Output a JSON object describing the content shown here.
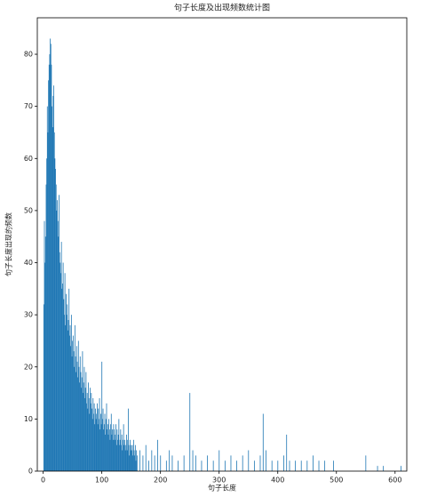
{
  "chart_data": {
    "type": "bar",
    "title": "句子长度及出现频数统计图",
    "x_label": "句子长度",
    "y_label": "句子长度出现的频数",
    "color": "#1f77b4",
    "x": [
      1,
      2,
      3,
      4,
      5,
      6,
      7,
      8,
      9,
      10,
      11,
      12,
      13,
      14,
      15,
      16,
      17,
      18,
      19,
      20,
      21,
      22,
      23,
      24,
      25,
      26,
      27,
      28,
      29,
      30,
      31,
      32,
      33,
      34,
      35,
      36,
      37,
      38,
      39,
      40,
      41,
      42,
      43,
      44,
      45,
      46,
      47,
      48,
      49,
      50,
      51,
      52,
      53,
      54,
      55,
      56,
      57,
      58,
      59,
      60,
      61,
      62,
      63,
      64,
      65,
      66,
      67,
      68,
      69,
      70,
      71,
      72,
      73,
      74,
      75,
      76,
      77,
      78,
      79,
      80,
      81,
      82,
      83,
      84,
      85,
      86,
      87,
      88,
      89,
      90,
      91,
      92,
      93,
      94,
      95,
      96,
      97,
      98,
      99,
      100,
      101,
      102,
      103,
      104,
      105,
      106,
      107,
      108,
      109,
      110,
      111,
      112,
      113,
      114,
      115,
      116,
      117,
      118,
      119,
      120,
      121,
      122,
      123,
      124,
      125,
      126,
      127,
      128,
      129,
      130,
      131,
      132,
      133,
      134,
      135,
      136,
      137,
      138,
      139,
      140,
      141,
      142,
      143,
      144,
      145,
      146,
      147,
      148,
      149,
      150,
      151,
      152,
      153,
      154,
      155,
      156,
      157,
      158,
      159,
      160,
      165,
      170,
      175,
      180,
      185,
      190,
      195,
      200,
      210,
      215,
      220,
      230,
      240,
      250,
      255,
      260,
      270,
      280,
      290,
      300,
      310,
      320,
      330,
      340,
      350,
      360,
      370,
      375,
      380,
      390,
      400,
      410,
      415,
      420,
      430,
      440,
      450,
      460,
      470,
      480,
      495,
      550,
      570,
      580,
      610
    ],
    "values": [
      32,
      48,
      40,
      45,
      55,
      60,
      70,
      65,
      75,
      78,
      80,
      83,
      82,
      78,
      70,
      66,
      72,
      74,
      65,
      60,
      58,
      55,
      50,
      52,
      48,
      45,
      53,
      42,
      40,
      38,
      44,
      35,
      36,
      40,
      33,
      30,
      38,
      28,
      34,
      30,
      32,
      27,
      29,
      35,
      26,
      28,
      24,
      30,
      22,
      25,
      26,
      23,
      20,
      28,
      22,
      19,
      24,
      21,
      18,
      25,
      20,
      17,
      22,
      19,
      16,
      18,
      23,
      15,
      17,
      20,
      14,
      16,
      19,
      13,
      15,
      12,
      17,
      14,
      11,
      16,
      13,
      15,
      12,
      10,
      14,
      11,
      13,
      9,
      12,
      10,
      11,
      13,
      9,
      12,
      10,
      14,
      8,
      11,
      9,
      21,
      10,
      12,
      8,
      9,
      11,
      7,
      10,
      13,
      8,
      9,
      7,
      10,
      8,
      6,
      9,
      11,
      7,
      8,
      6,
      9,
      8,
      6,
      7,
      9,
      5,
      8,
      6,
      7,
      10,
      5,
      6,
      8,
      5,
      7,
      4,
      6,
      9,
      5,
      6,
      4,
      5,
      7,
      4,
      6,
      12,
      5,
      3,
      6,
      4,
      5,
      4,
      5,
      3,
      6,
      4,
      3,
      5,
      2,
      4,
      3,
      4,
      3,
      5,
      2,
      4,
      3,
      6,
      3,
      2,
      4,
      3,
      2,
      3,
      15,
      4,
      3,
      2,
      3,
      2,
      4,
      2,
      3,
      2,
      3,
      4,
      2,
      3,
      11,
      4,
      2,
      2,
      3,
      7,
      2,
      2,
      2,
      2,
      3,
      2,
      2,
      2,
      3,
      1,
      1,
      1
    ],
    "xlim": [
      -10,
      620
    ],
    "xticks": [
      0,
      100,
      200,
      300,
      400,
      500,
      600
    ],
    "ylim": [
      0,
      87
    ],
    "yticks": [
      0,
      10,
      20,
      30,
      40,
      50,
      60,
      70,
      80
    ]
  }
}
